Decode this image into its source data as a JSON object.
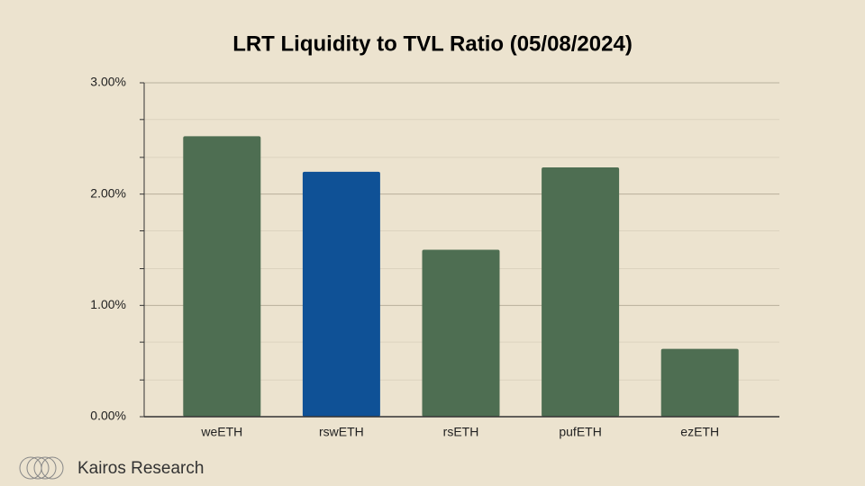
{
  "chart_data": {
    "type": "bar",
    "title": "LRT Liquidity to TVL Ratio (05/08/2024)",
    "categories": [
      "weETH",
      "rswETH",
      "rsETH",
      "pufETH",
      "ezETH"
    ],
    "values": [
      2.52,
      2.2,
      1.5,
      2.24,
      0.61
    ],
    "colors": [
      "#4e6e52",
      "#0f5196",
      "#4e6e52",
      "#4e6e52",
      "#4e6e52"
    ],
    "ylim": [
      0,
      3
    ],
    "yticks": [
      {
        "value": 0,
        "label": "0.00%"
      },
      {
        "value": 1,
        "label": "1.00%"
      },
      {
        "value": 2,
        "label": "2.00%"
      },
      {
        "value": 3,
        "label": "3.00%"
      }
    ],
    "minor_yticks": [
      0.33,
      0.67,
      1.33,
      1.67,
      2.33,
      2.67
    ],
    "grid": true
  },
  "footer": {
    "brand": "Kairos Research"
  }
}
